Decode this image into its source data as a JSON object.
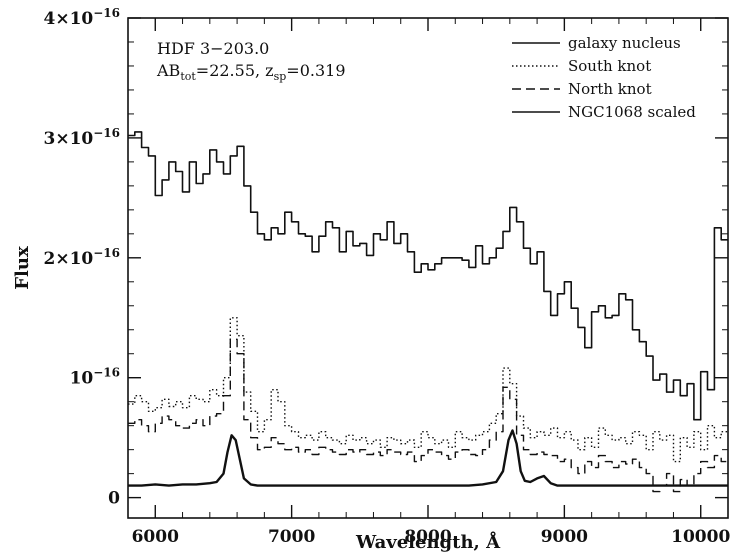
{
  "chart_data": {
    "type": "line",
    "title": "",
    "xlabel": "Wavelength, Å",
    "ylabel": "Flux",
    "xlim": [
      5800,
      10200
    ],
    "ylim": [
      -0.17,
      4.0
    ],
    "y_unit_exponent": -16,
    "x_ticks": [
      6000,
      7000,
      8000,
      9000,
      10000
    ],
    "y_ticks": [
      {
        "value": 0,
        "label": "0"
      },
      {
        "value": 1,
        "label": "10",
        "sup": "−16"
      },
      {
        "value": 2,
        "label": "2×10",
        "sup": "−16"
      },
      {
        "value": 3,
        "label": "3×10",
        "sup": "−16"
      },
      {
        "value": 4,
        "label": "4×10",
        "sup": "−16"
      }
    ],
    "grid": false,
    "legend_position": "top-right",
    "annotation": {
      "line1": "HDF 3−203.0",
      "line2_prefix": "AB",
      "line2_sub": "tot",
      "line2_mid": "=22.55, z",
      "line2_sub2": "sp",
      "line2_suffix": "=0.319"
    },
    "series": [
      {
        "name": "galaxy nucleus",
        "style": "solid",
        "stroke_width": 1.6,
        "color": "#111111",
        "step": true,
        "x": [
          5800,
          5850,
          5900,
          5950,
          6000,
          6050,
          6100,
          6150,
          6200,
          6250,
          6300,
          6350,
          6400,
          6450,
          6500,
          6550,
          6600,
          6650,
          6700,
          6750,
          6800,
          6850,
          6900,
          6950,
          7000,
          7050,
          7100,
          7150,
          7200,
          7250,
          7300,
          7350,
          7400,
          7450,
          7500,
          7550,
          7600,
          7650,
          7700,
          7750,
          7800,
          7850,
          7900,
          7950,
          8000,
          8050,
          8100,
          8150,
          8200,
          8250,
          8300,
          8350,
          8400,
          8450,
          8500,
          8550,
          8600,
          8650,
          8700,
          8750,
          8800,
          8850,
          8900,
          8950,
          9000,
          9050,
          9100,
          9150,
          9200,
          9250,
          9300,
          9350,
          9400,
          9450,
          9500,
          9550,
          9600,
          9650,
          9700,
          9750,
          9800,
          9850,
          9900,
          9950,
          10000,
          10050,
          10100,
          10150
        ],
        "y": [
          3.02,
          3.05,
          2.92,
          2.85,
          2.52,
          2.65,
          2.8,
          2.72,
          2.55,
          2.8,
          2.62,
          2.7,
          2.9,
          2.8,
          2.7,
          2.85,
          2.93,
          2.6,
          2.38,
          2.2,
          2.15,
          2.25,
          2.2,
          2.38,
          2.3,
          2.2,
          2.18,
          2.05,
          2.18,
          2.3,
          2.25,
          2.05,
          2.22,
          2.1,
          2.12,
          2.02,
          2.2,
          2.15,
          2.3,
          2.12,
          2.2,
          2.05,
          1.88,
          1.95,
          1.9,
          1.95,
          2.0,
          2.0,
          2.0,
          1.98,
          1.92,
          2.1,
          1.95,
          2.0,
          2.08,
          2.22,
          2.42,
          2.3,
          2.08,
          1.95,
          2.05,
          1.72,
          1.52,
          1.7,
          1.8,
          1.58,
          1.42,
          1.25,
          1.55,
          1.6,
          1.5,
          1.52,
          1.7,
          1.65,
          1.4,
          1.3,
          1.18,
          0.98,
          1.03,
          0.88,
          0.98,
          0.85,
          0.95,
          0.65,
          1.05,
          0.9,
          2.25,
          2.15
        ]
      },
      {
        "name": "South knot",
        "style": "dotted",
        "stroke_width": 1.4,
        "color": "#111111",
        "step": true,
        "x": [
          5800,
          5850,
          5900,
          5950,
          6000,
          6050,
          6100,
          6150,
          6200,
          6250,
          6300,
          6350,
          6400,
          6450,
          6500,
          6550,
          6600,
          6650,
          6700,
          6750,
          6800,
          6850,
          6900,
          6950,
          7000,
          7050,
          7100,
          7150,
          7200,
          7250,
          7300,
          7350,
          7400,
          7450,
          7500,
          7550,
          7600,
          7650,
          7700,
          7750,
          7800,
          7850,
          7900,
          7950,
          8000,
          8050,
          8100,
          8150,
          8200,
          8250,
          8300,
          8350,
          8400,
          8450,
          8500,
          8550,
          8600,
          8650,
          8700,
          8750,
          8800,
          8850,
          8900,
          8950,
          9000,
          9050,
          9100,
          9150,
          9200,
          9250,
          9300,
          9350,
          9400,
          9450,
          9500,
          9550,
          9600,
          9650,
          9700,
          9750,
          9800,
          9850,
          9900,
          9950,
          10000,
          10050,
          10100,
          10150
        ],
        "y": [
          0.78,
          0.85,
          0.8,
          0.72,
          0.75,
          0.82,
          0.76,
          0.8,
          0.75,
          0.85,
          0.82,
          0.8,
          0.9,
          0.85,
          1.0,
          1.5,
          1.35,
          0.88,
          0.72,
          0.55,
          0.65,
          0.9,
          0.8,
          0.6,
          0.55,
          0.5,
          0.52,
          0.48,
          0.55,
          0.5,
          0.48,
          0.45,
          0.52,
          0.48,
          0.5,
          0.45,
          0.48,
          0.42,
          0.5,
          0.48,
          0.45,
          0.48,
          0.42,
          0.55,
          0.5,
          0.45,
          0.48,
          0.42,
          0.55,
          0.5,
          0.48,
          0.52,
          0.55,
          0.62,
          0.7,
          1.08,
          0.95,
          0.68,
          0.58,
          0.5,
          0.55,
          0.52,
          0.58,
          0.5,
          0.55,
          0.48,
          0.4,
          0.5,
          0.42,
          0.58,
          0.52,
          0.48,
          0.5,
          0.45,
          0.55,
          0.52,
          0.4,
          0.55,
          0.48,
          0.52,
          0.3,
          0.5,
          0.42,
          0.55,
          0.4,
          0.6,
          0.5,
          0.55
        ]
      },
      {
        "name": "North knot",
        "style": "dashed",
        "stroke_width": 1.4,
        "color": "#111111",
        "step": true,
        "x": [
          5800,
          5850,
          5900,
          5950,
          6000,
          6050,
          6100,
          6150,
          6200,
          6250,
          6300,
          6350,
          6400,
          6450,
          6500,
          6550,
          6600,
          6650,
          6700,
          6750,
          6800,
          6850,
          6900,
          6950,
          7000,
          7050,
          7100,
          7150,
          7200,
          7250,
          7300,
          7350,
          7400,
          7450,
          7500,
          7550,
          7600,
          7650,
          7700,
          7750,
          7800,
          7850,
          7900,
          7950,
          8000,
          8050,
          8100,
          8150,
          8200,
          8250,
          8300,
          8350,
          8400,
          8450,
          8500,
          8550,
          8600,
          8650,
          8700,
          8750,
          8800,
          8850,
          8900,
          8950,
          9000,
          9050,
          9100,
          9150,
          9200,
          9250,
          9300,
          9350,
          9400,
          9450,
          9500,
          9550,
          9600,
          9650,
          9700,
          9750,
          9800,
          9850,
          9900,
          9950,
          10000,
          10050,
          10100,
          10150
        ],
        "y": [
          0.62,
          0.65,
          0.6,
          0.55,
          0.62,
          0.68,
          0.65,
          0.6,
          0.58,
          0.62,
          0.65,
          0.6,
          0.68,
          0.7,
          0.85,
          1.32,
          1.2,
          0.65,
          0.5,
          0.4,
          0.42,
          0.5,
          0.45,
          0.4,
          0.42,
          0.38,
          0.4,
          0.36,
          0.42,
          0.4,
          0.38,
          0.36,
          0.4,
          0.38,
          0.4,
          0.36,
          0.38,
          0.35,
          0.4,
          0.38,
          0.36,
          0.38,
          0.3,
          0.35,
          0.4,
          0.38,
          0.35,
          0.32,
          0.38,
          0.4,
          0.36,
          0.35,
          0.4,
          0.48,
          0.55,
          0.92,
          0.82,
          0.52,
          0.4,
          0.36,
          0.38,
          0.36,
          0.35,
          0.3,
          0.32,
          0.25,
          0.2,
          0.3,
          0.25,
          0.35,
          0.3,
          0.25,
          0.3,
          0.28,
          0.32,
          0.25,
          0.2,
          0.05,
          0.1,
          0.2,
          0.05,
          0.15,
          0.1,
          0.2,
          0.3,
          0.25,
          0.35,
          0.3
        ]
      },
      {
        "name": "NGC1068 scaled",
        "style": "solid",
        "stroke_width": 2.4,
        "color": "#111111",
        "step": false,
        "x": [
          5800,
          5900,
          6000,
          6100,
          6200,
          6300,
          6400,
          6450,
          6500,
          6530,
          6560,
          6590,
          6620,
          6650,
          6700,
          6750,
          6800,
          6900,
          7000,
          7100,
          7200,
          7300,
          7400,
          7500,
          7600,
          7700,
          7800,
          7900,
          8000,
          8100,
          8200,
          8300,
          8400,
          8500,
          8550,
          8590,
          8620,
          8650,
          8680,
          8710,
          8750,
          8800,
          8850,
          8900,
          8950,
          9000,
          9100,
          9200,
          9300,
          9400,
          9500,
          9600,
          9700,
          9800,
          9900,
          10000,
          10100,
          10200
        ],
        "y": [
          0.1,
          0.1,
          0.11,
          0.1,
          0.11,
          0.11,
          0.12,
          0.13,
          0.2,
          0.38,
          0.52,
          0.48,
          0.32,
          0.16,
          0.11,
          0.1,
          0.1,
          0.1,
          0.1,
          0.1,
          0.1,
          0.1,
          0.1,
          0.1,
          0.1,
          0.1,
          0.1,
          0.1,
          0.1,
          0.1,
          0.1,
          0.1,
          0.11,
          0.13,
          0.22,
          0.48,
          0.56,
          0.45,
          0.22,
          0.14,
          0.13,
          0.16,
          0.18,
          0.12,
          0.1,
          0.1,
          0.1,
          0.1,
          0.1,
          0.1,
          0.1,
          0.1,
          0.1,
          0.1,
          0.1,
          0.1,
          0.1,
          0.1
        ]
      }
    ]
  }
}
